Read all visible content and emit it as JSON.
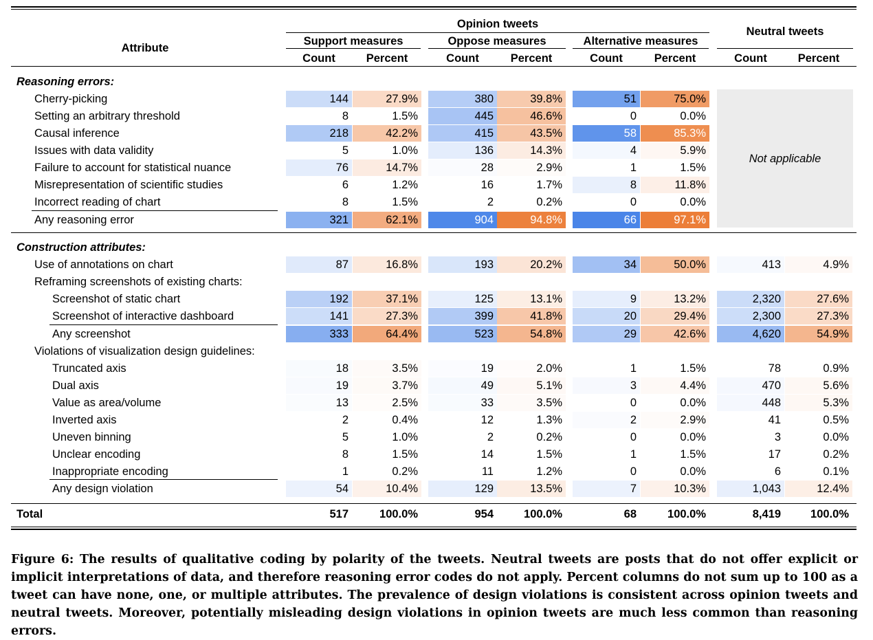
{
  "header": {
    "attribute": "Attribute",
    "opinion": "Opinion tweets",
    "neutral": "Neutral tweets",
    "groups": [
      "Support measures",
      "Oppose measures",
      "Alternative measures"
    ],
    "count": "Count",
    "percent": "Percent"
  },
  "sections": {
    "reasoning": "Reasoning errors:",
    "construction": "Construction attributes:"
  },
  "subheads": {
    "reframing": "Reframing screenshots of existing charts:",
    "violations": "Violations of visualization design guidelines:"
  },
  "not_applicable": "Not applicable",
  "rows": [
    {
      "label": "Cherry-picking",
      "values": [
        "144",
        "27.9%",
        "380",
        "39.8%",
        "51",
        "75.0%"
      ]
    },
    {
      "label": "Setting an arbitrary threshold",
      "values": [
        "8",
        "1.5%",
        "445",
        "46.6%",
        "0",
        "0.0%"
      ]
    },
    {
      "label": "Causal inference",
      "values": [
        "218",
        "42.2%",
        "415",
        "43.5%",
        "58",
        "85.3%"
      ]
    },
    {
      "label": "Issues with data validity",
      "values": [
        "5",
        "1.0%",
        "136",
        "14.3%",
        "4",
        "5.9%"
      ]
    },
    {
      "label": "Failure to account for statistical nuance",
      "values": [
        "76",
        "14.7%",
        "28",
        "2.9%",
        "1",
        "1.5%"
      ]
    },
    {
      "label": "Misrepresentation of scientific studies",
      "values": [
        "6",
        "1.2%",
        "16",
        "1.7%",
        "8",
        "11.8%"
      ]
    },
    {
      "label": "Incorrect reading of chart",
      "values": [
        "8",
        "1.5%",
        "2",
        "0.2%",
        "0",
        "0.0%"
      ]
    },
    {
      "label": "Any reasoning error",
      "values": [
        "321",
        "62.1%",
        "904",
        "94.8%",
        "66",
        "97.1%"
      ]
    },
    {
      "label": "Use of annotations on chart",
      "values": [
        "87",
        "16.8%",
        "193",
        "20.2%",
        "34",
        "50.0%",
        "413",
        "4.9%"
      ]
    },
    {
      "label": "Screenshot of static chart",
      "values": [
        "192",
        "37.1%",
        "125",
        "13.1%",
        "9",
        "13.2%",
        "2,320",
        "27.6%"
      ]
    },
    {
      "label": "Screenshot of interactive dashboard",
      "values": [
        "141",
        "27.3%",
        "399",
        "41.8%",
        "20",
        "29.4%",
        "2,300",
        "27.3%"
      ]
    },
    {
      "label": "Any screenshot",
      "values": [
        "333",
        "64.4%",
        "523",
        "54.8%",
        "29",
        "42.6%",
        "4,620",
        "54.9%"
      ]
    },
    {
      "label": "Truncated axis",
      "values": [
        "18",
        "3.5%",
        "19",
        "2.0%",
        "1",
        "1.5%",
        "78",
        "0.9%"
      ]
    },
    {
      "label": "Dual axis",
      "values": [
        "19",
        "3.7%",
        "49",
        "5.1%",
        "3",
        "4.4%",
        "470",
        "5.6%"
      ]
    },
    {
      "label": "Value as area/volume",
      "values": [
        "13",
        "2.5%",
        "33",
        "3.5%",
        "0",
        "0.0%",
        "448",
        "5.3%"
      ]
    },
    {
      "label": "Inverted axis",
      "values": [
        "2",
        "0.4%",
        "12",
        "1.3%",
        "2",
        "2.9%",
        "41",
        "0.5%"
      ]
    },
    {
      "label": "Uneven binning",
      "values": [
        "5",
        "1.0%",
        "2",
        "0.2%",
        "0",
        "0.0%",
        "3",
        "0.0%"
      ]
    },
    {
      "label": "Unclear encoding",
      "values": [
        "8",
        "1.5%",
        "14",
        "1.5%",
        "1",
        "1.5%",
        "17",
        "0.2%"
      ]
    },
    {
      "label": "Inappropriate encoding",
      "values": [
        "1",
        "0.2%",
        "11",
        "1.2%",
        "0",
        "0.0%",
        "6",
        "0.1%"
      ]
    },
    {
      "label": "Any design violation",
      "values": [
        "54",
        "10.4%",
        "129",
        "13.5%",
        "7",
        "10.3%",
        "1,043",
        "12.4%"
      ]
    }
  ],
  "total": {
    "label": "Total",
    "values": [
      "517",
      "100.0%",
      "954",
      "100.0%",
      "68",
      "100.0%",
      "8,419",
      "100.0%"
    ]
  },
  "caption": "Figure 6: The results of qualitative coding by polarity of the tweets. Neutral tweets are posts that do not offer explicit or implicit interpretations of data, and therefore reasoning error codes do not apply. Percent columns do not sum up to 100 as a tweet can have none, one, or multiple attributes. The prevalence of design violations is consistent across opinion tweets and neutral tweets. Moreover, potentially misleading design violations in opinion tweets are much less common than reasoning errors."
}
